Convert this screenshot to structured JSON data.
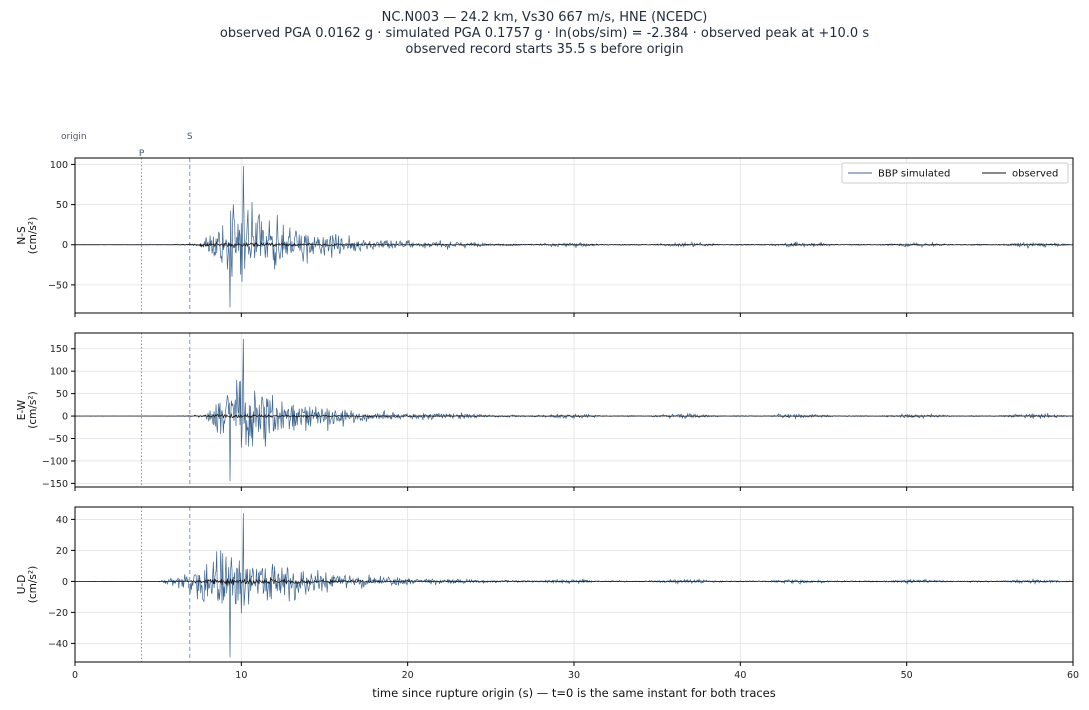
{
  "title": {
    "line1": "NC.N003  —  24.2 km, Vs30 667 m/s, HNE (NCEDC)",
    "line2": "observed PGA 0.0162 g   ·   simulated PGA 0.1757 g   ·   ln(obs/sim) = -2.384   ·   observed peak at +10.0 s",
    "line3": "observed record starts 35.5 s before origin"
  },
  "chart_data": {
    "type": "line",
    "xlabel": "time since rupture origin (s)   —   t=0 is the same instant for both traces",
    "xlim": [
      0,
      60
    ],
    "xticks": [
      0,
      10,
      20,
      30,
      40,
      50,
      60
    ],
    "grid": true,
    "legend": {
      "placement": "top-right",
      "entries": [
        "BBP simulated",
        "observed"
      ]
    },
    "series_styles": [
      {
        "name": "BBP simulated",
        "color": "#3f6690"
      },
      {
        "name": "observed",
        "color": "#111111"
      }
    ],
    "phase_markers": [
      {
        "label": "origin",
        "t": 0,
        "style": "none"
      },
      {
        "label": "P",
        "t": 4.0,
        "style": "dotted",
        "color": "#8a93a6"
      },
      {
        "label": "S",
        "t": 6.9,
        "style": "dashed",
        "color": "#7f95c8"
      }
    ],
    "panels": [
      {
        "component": "N-S",
        "unit": "(cm/s²)",
        "ylim": [
          -85,
          108
        ],
        "yticks": [
          -50,
          0,
          50,
          100
        ],
        "envelope": {
          "simulated_peak": 98,
          "simulated_min": -78,
          "observed_peak": 8,
          "onset_s": 7.5
        }
      },
      {
        "component": "E-W",
        "unit": "(cm/s²)",
        "ylim": [
          -158,
          185
        ],
        "yticks": [
          -150,
          -100,
          -50,
          0,
          50,
          100,
          150
        ],
        "envelope": {
          "simulated_peak": 172,
          "simulated_min": -145,
          "observed_peak": 10,
          "onset_s": 7.8
        }
      },
      {
        "component": "U-D",
        "unit": "(cm/s²)",
        "ylim": [
          -52,
          48
        ],
        "yticks": [
          -40,
          -20,
          0,
          20,
          40
        ],
        "envelope": {
          "simulated_peak": 44,
          "simulated_min": -49,
          "observed_peak": 6,
          "onset_s": 5.0
        }
      }
    ]
  }
}
